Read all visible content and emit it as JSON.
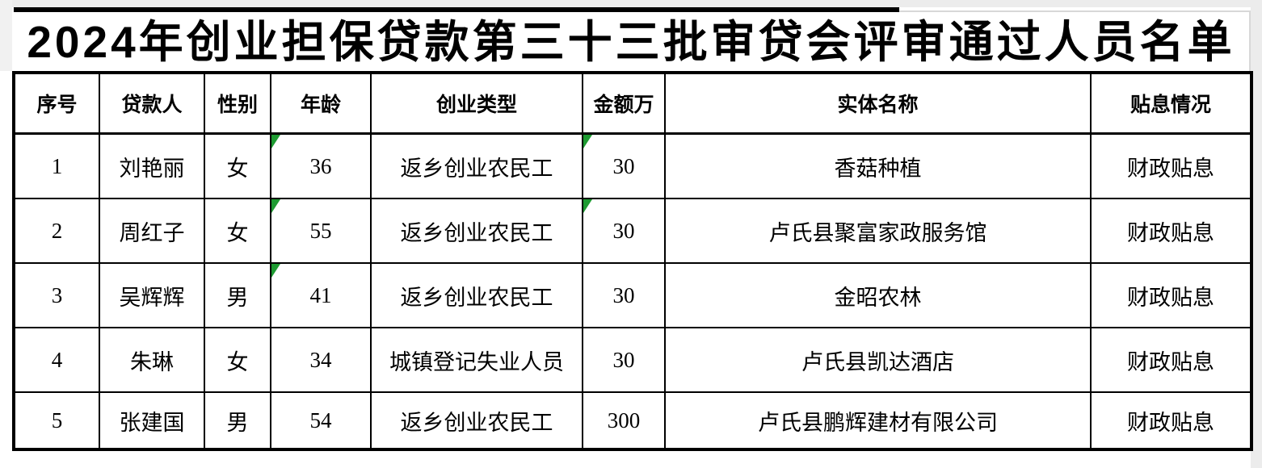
{
  "title": "2024年创业担保贷款第三十三批审贷会评审通过人员名单",
  "columns": {
    "no": "序号",
    "name": "贷款人",
    "gender": "性别",
    "age": "年龄",
    "type": "创业类型",
    "amount": "金额万",
    "entity": "实体名称",
    "subsidy": "贴息情况"
  },
  "rows": [
    {
      "no": "1",
      "name": "刘艳丽",
      "gender": "女",
      "age": "36",
      "type": "返乡创业农民工",
      "amount": "30",
      "entity": "香菇种植",
      "subsidy": "财政贴息",
      "age_marker": true,
      "amount_marker": true
    },
    {
      "no": "2",
      "name": "周红子",
      "gender": "女",
      "age": "55",
      "type": "返乡创业农民工",
      "amount": "30",
      "entity": "卢氏县聚富家政服务馆",
      "subsidy": "财政贴息",
      "age_marker": true,
      "amount_marker": true
    },
    {
      "no": "3",
      "name": "吴辉辉",
      "gender": "男",
      "age": "41",
      "type": "返乡创业农民工",
      "amount": "30",
      "entity": "金昭农林",
      "subsidy": "财政贴息",
      "age_marker": true,
      "amount_marker": false
    },
    {
      "no": "4",
      "name": "朱琳",
      "gender": "女",
      "age": "34",
      "type": "城镇登记失业人员",
      "amount": "30",
      "entity": "卢氏县凯达酒店",
      "subsidy": "财政贴息",
      "age_marker": false,
      "amount_marker": false
    },
    {
      "no": "5",
      "name": "张建国",
      "gender": "男",
      "age": "54",
      "type": "返乡创业农民工",
      "amount": "300",
      "entity": "卢氏县鹏辉建材有限公司",
      "subsidy": "财政贴息",
      "age_marker": false,
      "amount_marker": false
    }
  ],
  "colors": {
    "border": "#000000",
    "error_marker_green": "#1e9b32",
    "sheet_margin_gray": "#ececec"
  }
}
